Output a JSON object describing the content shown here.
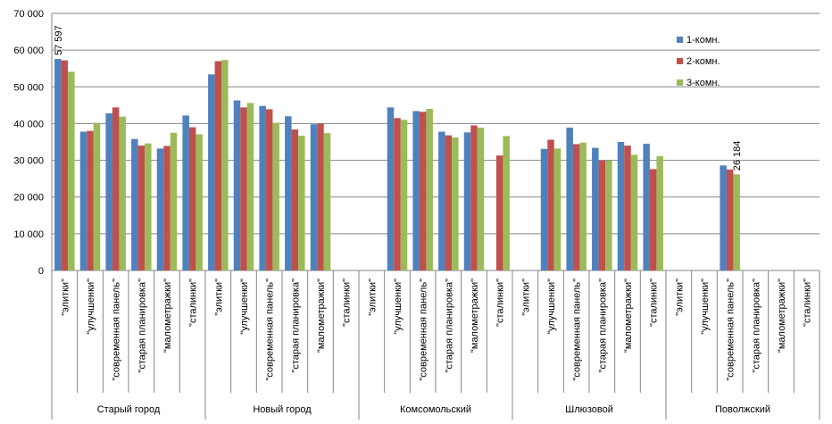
{
  "chart_data": {
    "type": "bar",
    "ylim": [
      0,
      70000
    ],
    "yticks": [
      0,
      10000,
      20000,
      30000,
      40000,
      50000,
      60000,
      70000
    ],
    "ytick_labels": [
      "0",
      "10 000",
      "20 000",
      "30 000",
      "40 000",
      "50 000",
      "60 000",
      "70 000"
    ],
    "grid": true,
    "legend_position": "right",
    "groups": [
      "Старый город",
      "Новый город",
      "Комсомольский",
      "Шлюзовой",
      "Поволжский"
    ],
    "categories": [
      "\"элитки\"",
      "\"улучшенки\"",
      "\"современная панель\"",
      "\"старая планировка\"",
      "\"малометражки\"",
      "\"сталинки\""
    ],
    "series": [
      {
        "name": "1-комн.",
        "color": "#4F81BD",
        "values": [
          [
            57597,
            37800,
            42800,
            35800,
            33200,
            42200
          ],
          [
            53400,
            46300,
            44800,
            42000,
            39800,
            null
          ],
          [
            null,
            44400,
            43400,
            37800,
            37600,
            null
          ],
          [
            null,
            33100,
            38900,
            33400,
            35000,
            34500
          ],
          [
            null,
            null,
            28600,
            null,
            null,
            null
          ]
        ]
      },
      {
        "name": "2-комн.",
        "color": "#C0504D",
        "values": [
          [
            57200,
            38000,
            44400,
            34000,
            33900,
            39000
          ],
          [
            57000,
            44400,
            43900,
            38400,
            40000,
            null
          ],
          [
            null,
            41500,
            43200,
            36800,
            39500,
            31300
          ],
          [
            null,
            35600,
            34400,
            29900,
            34000,
            27600
          ],
          [
            null,
            null,
            27500,
            null,
            null,
            null
          ]
        ]
      },
      {
        "name": "3-комн.",
        "color": "#9BBB59",
        "values": [
          [
            54100,
            40200,
            41900,
            34600,
            37500,
            37100
          ],
          [
            57300,
            45600,
            40200,
            36700,
            37400,
            null
          ],
          [
            null,
            41000,
            44000,
            36200,
            38900,
            36600
          ],
          [
            null,
            33200,
            34800,
            29900,
            31500,
            31100
          ],
          [
            null,
            null,
            26184,
            null,
            null,
            null
          ]
        ]
      }
    ],
    "data_labels": [
      {
        "text": "57 597"
      },
      {
        "text": "26 184"
      }
    ]
  }
}
